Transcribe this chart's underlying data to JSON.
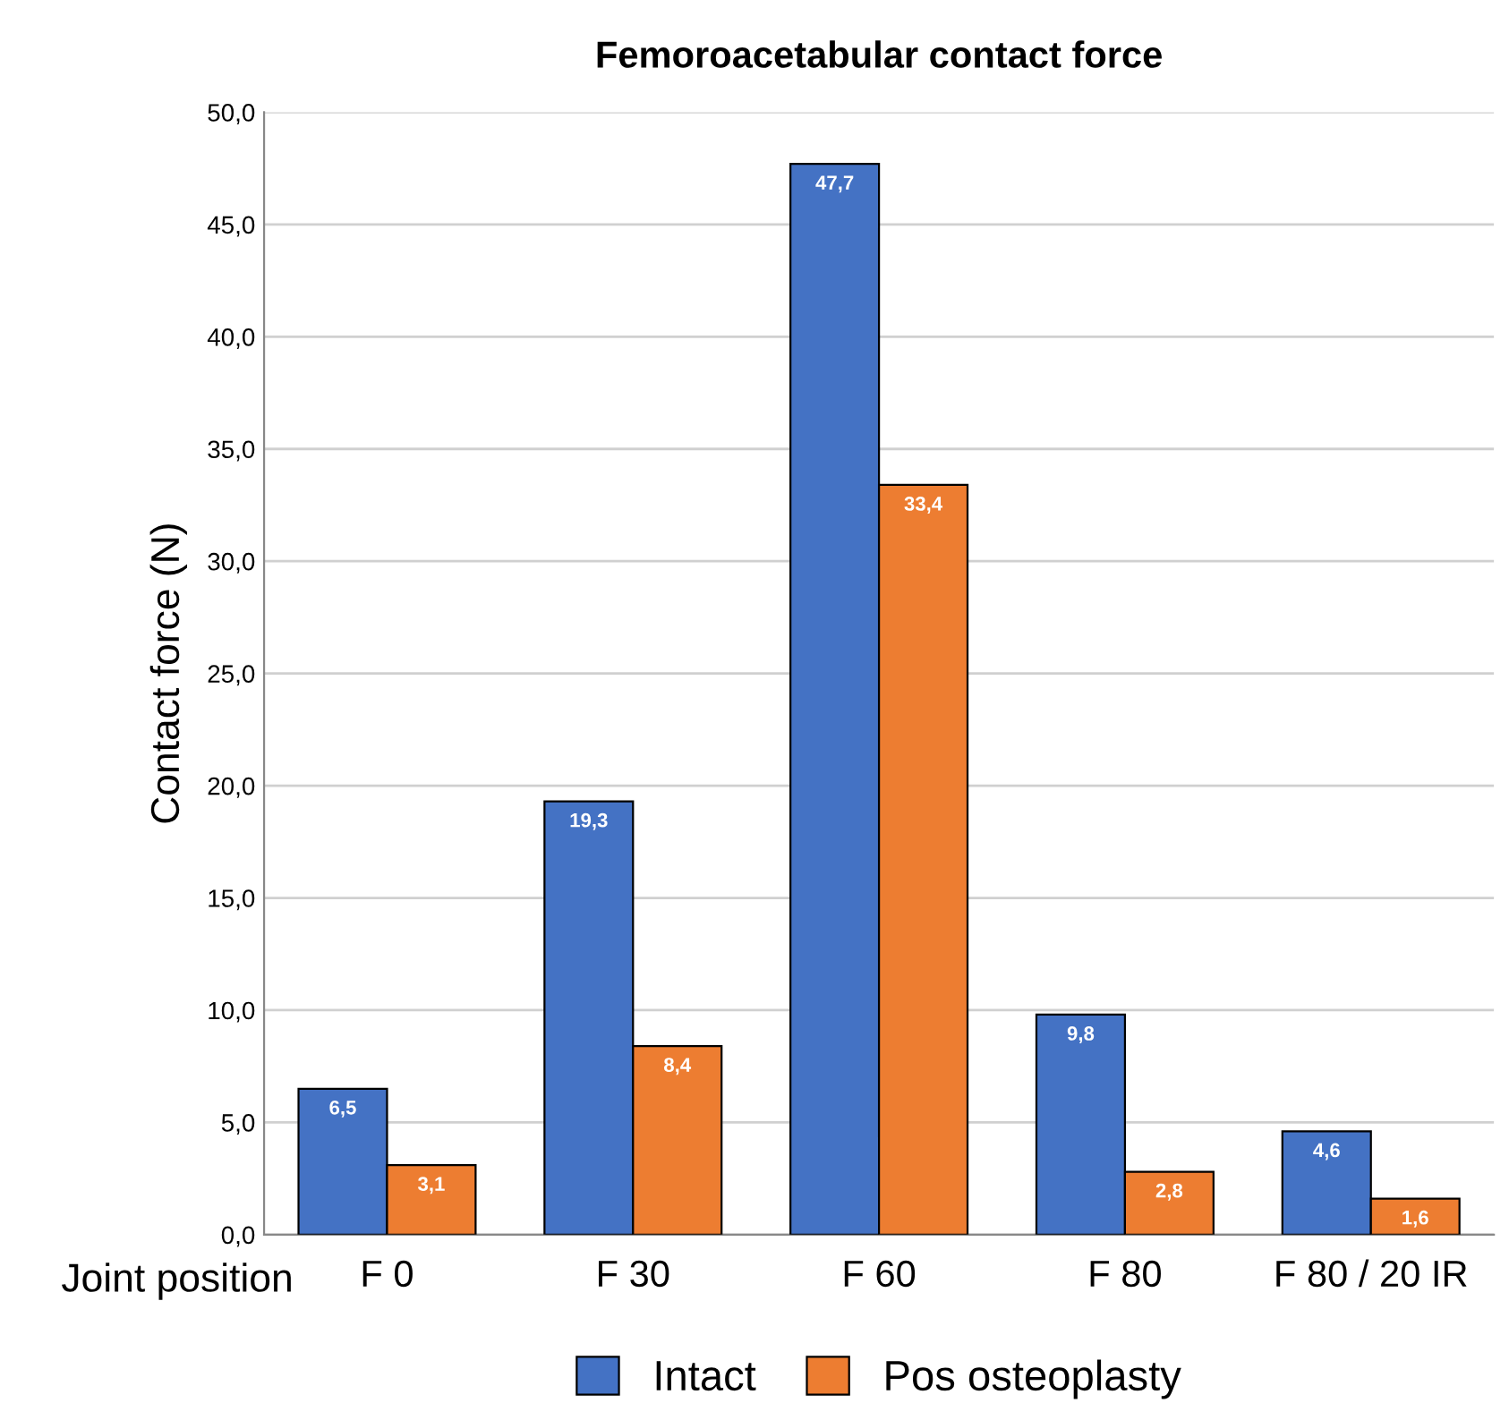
{
  "chart_data": {
    "type": "bar",
    "title": "Femoroacetabular contact force",
    "xlabel": "Joint position",
    "ylabel": "Contact force (N)",
    "categories": [
      "F 0",
      "F 30",
      "F 60",
      "F 80",
      "F 80 / 20 IR"
    ],
    "series": [
      {
        "name": "Intact",
        "color": "#4472c4",
        "values": [
          6.5,
          19.3,
          47.7,
          9.8,
          4.6
        ],
        "value_labels": [
          "6,5",
          "19,3",
          "47,7",
          "9,8",
          "4,6"
        ]
      },
      {
        "name": "Pos osteoplasty",
        "color": "#ed7d31",
        "values": [
          3.1,
          8.4,
          33.4,
          2.8,
          1.6
        ],
        "value_labels": [
          "3,1",
          "8,4",
          "33,4",
          "2,8",
          "1,6"
        ]
      }
    ],
    "ylim": [
      0,
      50
    ],
    "yticks": [
      {
        "value": 0,
        "label": "0,0"
      },
      {
        "value": 5,
        "label": "5,0"
      },
      {
        "value": 10,
        "label": "10,0"
      },
      {
        "value": 15,
        "label": "15,0"
      },
      {
        "value": 20,
        "label": "20,0"
      },
      {
        "value": 25,
        "label": "25,0"
      },
      {
        "value": 30,
        "label": "30,0"
      },
      {
        "value": 35,
        "label": "35,0"
      },
      {
        "value": 40,
        "label": "40,0"
      },
      {
        "value": 45,
        "label": "45,0"
      },
      {
        "value": 50,
        "label": "50,0"
      }
    ],
    "grid": "y",
    "legend": "bottom"
  }
}
